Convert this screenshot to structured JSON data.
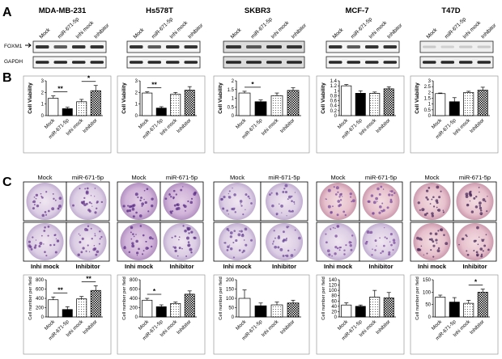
{
  "panel_labels": [
    "A",
    "B",
    "C"
  ],
  "cell_lines": [
    "MDA-MB-231",
    "Hs578T",
    "SKBR3",
    "MCF-7",
    "T47D"
  ],
  "wb": {
    "lanes": [
      "Mock",
      "miR-671-5p",
      "Inhi mock",
      "Inhibitor"
    ],
    "row_labels": [
      "FOXM1",
      "GAPDH"
    ]
  },
  "conditions": [
    "Mock",
    "miR-671-5p",
    "Inhi mock",
    "Inhibitor"
  ],
  "image_labels": {
    "top": [
      "Mock",
      "miR-671-5p"
    ],
    "bottom": [
      "Inhi mock",
      "Inhibitor"
    ]
  },
  "colors": {
    "white_bar": "#ffffff",
    "black_bar": "#000000",
    "dot_fill": "#ffffff"
  },
  "chart_data": [
    {
      "type": "bar",
      "panel": "B",
      "title": "MDA-MB-231",
      "ylabel": "Cell Viability",
      "ylim": [
        0,
        3
      ],
      "yticks": [
        "0",
        "1",
        "2",
        "3"
      ],
      "categories": [
        "Mock",
        "miR-671-5p",
        "Inhi mock",
        "Inhibitor"
      ],
      "values": [
        1.5,
        0.6,
        1.2,
        2.15
      ],
      "errors": [
        0.2,
        0.12,
        0.2,
        0.45
      ],
      "significance": [
        {
          "from": 0,
          "to": 1,
          "label": "**"
        },
        {
          "from": 2,
          "to": 3,
          "label": "*"
        }
      ]
    },
    {
      "type": "bar",
      "panel": "B",
      "title": "Hs578T",
      "ylabel": "Cell Viability",
      "ylim": [
        0,
        3
      ],
      "yticks": [
        "0",
        "1",
        "2",
        "3"
      ],
      "categories": [
        "Mock",
        "miR-671-5p",
        "Inhi mock",
        "Inhibitor"
      ],
      "values": [
        1.95,
        0.65,
        1.85,
        2.2
      ],
      "errors": [
        0.1,
        0.12,
        0.15,
        0.3
      ],
      "significance": [
        {
          "from": 0,
          "to": 1,
          "label": "**"
        }
      ]
    },
    {
      "type": "bar",
      "panel": "B",
      "title": "SKBR3",
      "ylabel": "Cell Viability",
      "ylim": [
        0,
        2
      ],
      "yticks": [
        "0",
        "0.5",
        "1",
        "1.5",
        "2"
      ],
      "categories": [
        "Mock",
        "miR-671-5p",
        "Inhi mock",
        "Inhibitor"
      ],
      "values": [
        1.3,
        0.8,
        1.15,
        1.45
      ],
      "errors": [
        0.1,
        0.1,
        0.15,
        0.15
      ],
      "significance": [
        {
          "from": 0,
          "to": 1,
          "label": "*"
        }
      ]
    },
    {
      "type": "bar",
      "panel": "B",
      "title": "MCF-7",
      "ylabel": "Cell Viability",
      "ylim": [
        0,
        1.4
      ],
      "yticks": [
        "0",
        "0.2",
        "0.4",
        "0.6",
        "0.8",
        "1",
        "1.2",
        "1.4"
      ],
      "categories": [
        "Mock",
        "miR-671-5p",
        "Inhi mock",
        "Inhibitor"
      ],
      "values": [
        1.2,
        0.9,
        0.9,
        1.08
      ],
      "errors": [
        0.05,
        0.1,
        0.05,
        0.08
      ],
      "significance": []
    },
    {
      "type": "bar",
      "panel": "B",
      "title": "T47D",
      "ylabel": "Cell Viability",
      "ylim": [
        0,
        3
      ],
      "yticks": [
        "0",
        "0.5",
        "1",
        "1.5",
        "2",
        "2.5",
        "3"
      ],
      "categories": [
        "Mock",
        "miR-671-5p",
        "Inhi mock",
        "Inhibitor"
      ],
      "values": [
        1.9,
        1.2,
        2.0,
        2.2
      ],
      "errors": [
        0.05,
        0.35,
        0.1,
        0.25
      ],
      "significance": []
    },
    {
      "type": "bar",
      "panel": "C",
      "title": "MDA-MB-231",
      "ylabel": "Cell number per field",
      "ylim": [
        0,
        800
      ],
      "yticks": [
        "0",
        "200",
        "400",
        "600",
        "800"
      ],
      "categories": [
        "Mock",
        "miR-671-5p",
        "Inhi mock",
        "Inhibitor"
      ],
      "values": [
        370,
        160,
        390,
        570
      ],
      "errors": [
        60,
        60,
        50,
        100
      ],
      "significance": [
        {
          "from": 0,
          "to": 1,
          "label": "**"
        },
        {
          "from": 2,
          "to": 3,
          "label": "**"
        }
      ]
    },
    {
      "type": "bar",
      "panel": "C",
      "title": "Hs578T",
      "ylabel": "Cell number per field",
      "ylim": [
        0,
        800
      ],
      "yticks": [
        "0",
        "200",
        "400",
        "600",
        "800"
      ],
      "categories": [
        "Mock",
        "miR-671-5p",
        "Inhi mock",
        "Inhibitor"
      ],
      "values": [
        360,
        220,
        290,
        490
      ],
      "errors": [
        40,
        40,
        30,
        70
      ],
      "significance": [
        {
          "from": 0,
          "to": 1,
          "label": "*"
        }
      ]
    },
    {
      "type": "bar",
      "panel": "C",
      "title": "SKBR3",
      "ylabel": "Cell number per field",
      "ylim": [
        0,
        200
      ],
      "yticks": [
        "0",
        "50",
        "100",
        "150",
        "200"
      ],
      "categories": [
        "Mock",
        "miR-671-5p",
        "Inhi mock",
        "Inhibitor"
      ],
      "values": [
        100,
        60,
        65,
        75
      ],
      "errors": [
        45,
        15,
        15,
        15
      ],
      "significance": []
    },
    {
      "type": "bar",
      "panel": "C",
      "title": "MCF-7",
      "ylabel": "Cell number per field",
      "ylim": [
        0,
        140
      ],
      "yticks": [
        "0",
        "20",
        "40",
        "60",
        "80",
        "100",
        "120",
        "140"
      ],
      "categories": [
        "Mock",
        "miR-671-5p",
        "Inhi mock",
        "Inhibitor"
      ],
      "values": [
        45,
        40,
        75,
        72
      ],
      "errors": [
        8,
        5,
        25,
        20
      ],
      "significance": []
    },
    {
      "type": "bar",
      "panel": "C",
      "title": "T47D",
      "ylabel": "Cell number per field",
      "ylim": [
        0,
        150
      ],
      "yticks": [
        "0",
        "50",
        "100",
        "150"
      ],
      "categories": [
        "Mock",
        "miR-671-5p",
        "Inhi mock",
        "Inhibitor"
      ],
      "values": [
        80,
        60,
        55,
        100
      ],
      "errors": [
        8,
        18,
        12,
        12
      ],
      "significance": [
        {
          "from": 2,
          "to": 3,
          "label": "*"
        }
      ]
    }
  ]
}
